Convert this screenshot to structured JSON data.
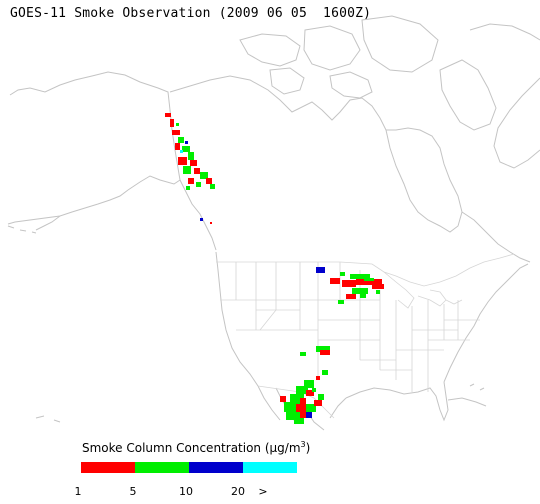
{
  "title": "GOES-11 Smoke Observation (2009 06 05  1600Z)",
  "legend": {
    "title_main": "Smoke Column Concentration (",
    "title_unit_mu": "μg/m",
    "title_unit_sup": "3",
    "title_close": ")",
    "bins": [
      {
        "label": "1",
        "color": "#ff0000"
      },
      {
        "label": "5",
        "color": "#00ee00"
      },
      {
        "label": "10",
        "color": "#0000cc"
      },
      {
        "label": "20",
        "color": "#00ffff"
      }
    ],
    "overflow_label": ">"
  },
  "colors": {
    "coastline": "#c8c8c8",
    "state_border": "#d4d4d4",
    "background": "#ffffff"
  }
}
